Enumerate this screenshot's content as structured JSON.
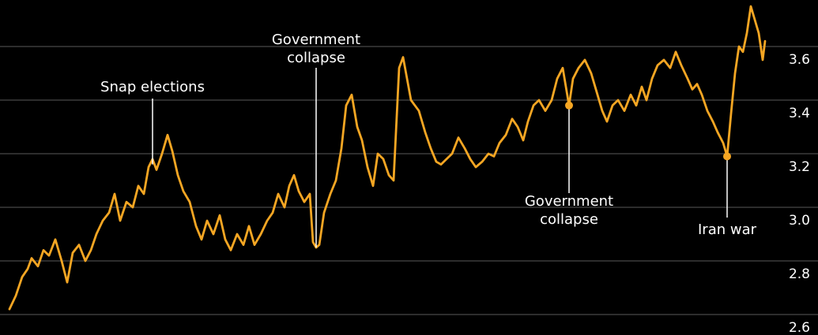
{
  "chart_data": {
    "type": "line",
    "title": "",
    "xlabel": "",
    "ylabel": "",
    "ylim": [
      2.55,
      3.8
    ],
    "y_ticks": [
      "2.6",
      "2.8",
      "3.0",
      "3.2",
      "3.4",
      "3.6"
    ],
    "y_tick_values": [
      2.6,
      2.8,
      3.0,
      3.2,
      3.4,
      3.6
    ],
    "grid": "horizontal",
    "x_range": [
      0,
      960
    ],
    "colors": {
      "line": "#f5a623",
      "grid": "#5a5a5a",
      "text": "#ffffff",
      "background": "#000000"
    },
    "series": [
      {
        "x": [
          12,
          20,
          28,
          35,
          40,
          48,
          55,
          62,
          70,
          78,
          85,
          92,
          100,
          108,
          115,
          122,
          130,
          138,
          145,
          152,
          160,
          168,
          175,
          182,
          188,
          193,
          198,
          205,
          212,
          218,
          225,
          232,
          240,
          248,
          255,
          262,
          270,
          278,
          285,
          292,
          300,
          308,
          315,
          322,
          330,
          338,
          345,
          352,
          360,
          366,
          372,
          378,
          385,
          392,
          396,
          400,
          404,
          410,
          418,
          425,
          432,
          438,
          445,
          452,
          458,
          465,
          472,
          478,
          485,
          492,
          498,
          505,
          510,
          515,
          520,
          525,
          530,
          538,
          545,
          552,
          558,
          565,
          572,
          580,
          588,
          595,
          602,
          610,
          618,
          625,
          632,
          640,
          648,
          655,
          662,
          668,
          675,
          682,
          690,
          698,
          705,
          712,
          716,
          720,
          725,
          732,
          740,
          748,
          755,
          762,
          768,
          775,
          782,
          790,
          798,
          805,
          812,
          818,
          825,
          832,
          840,
          848,
          855,
          862,
          870,
          876,
          882,
          888,
          895,
          902,
          908,
          915,
          920,
          925,
          930,
          935,
          940,
          945,
          950,
          955,
          960,
          965,
          968
        ],
        "values": [
          2.62,
          2.67,
          2.74,
          2.77,
          2.81,
          2.78,
          2.84,
          2.82,
          2.88,
          2.8,
          2.72,
          2.83,
          2.86,
          2.8,
          2.84,
          2.9,
          2.95,
          2.98,
          3.05,
          2.95,
          3.02,
          3.0,
          3.08,
          3.05,
          3.15,
          3.18,
          3.14,
          3.2,
          3.27,
          3.21,
          3.12,
          3.06,
          3.02,
          2.93,
          2.88,
          2.95,
          2.9,
          2.97,
          2.88,
          2.84,
          2.9,
          2.86,
          2.93,
          2.86,
          2.9,
          2.95,
          2.98,
          3.05,
          3.0,
          3.08,
          3.12,
          3.06,
          3.02,
          3.05,
          2.87,
          2.85,
          2.86,
          2.98,
          3.05,
          3.1,
          3.22,
          3.38,
          3.42,
          3.3,
          3.25,
          3.15,
          3.08,
          3.2,
          3.18,
          3.12,
          3.1,
          3.52,
          3.56,
          3.48,
          3.4,
          3.38,
          3.36,
          3.28,
          3.22,
          3.17,
          3.16,
          3.18,
          3.2,
          3.26,
          3.22,
          3.18,
          3.15,
          3.17,
          3.2,
          3.19,
          3.24,
          3.27,
          3.33,
          3.3,
          3.25,
          3.32,
          3.38,
          3.4,
          3.36,
          3.4,
          3.48,
          3.52,
          3.45,
          3.38,
          3.48,
          3.52,
          3.55,
          3.5,
          3.43,
          3.36,
          3.32,
          3.38,
          3.4,
          3.36,
          3.42,
          3.38,
          3.45,
          3.4,
          3.48,
          3.53,
          3.55,
          3.52,
          3.58,
          3.53,
          3.48,
          3.44,
          3.46,
          3.42,
          3.36,
          3.32,
          3.28,
          3.24,
          3.19,
          3.35,
          3.5,
          3.6,
          3.58,
          3.65,
          3.75,
          3.7,
          3.65,
          3.55,
          3.62
        ]
      }
    ],
    "annotations": [
      {
        "lines": [
          "Snap elections"
        ],
        "x": 193,
        "y": 3.16
      },
      {
        "lines": [
          "Government",
          "collapse"
        ],
        "x": 400,
        "y": 2.85
      },
      {
        "lines": [
          "Government",
          "collapse"
        ],
        "x": 720,
        "y": 3.38
      },
      {
        "lines": [
          "Iran war"
        ],
        "x": 920,
        "y": 3.19
      }
    ]
  }
}
